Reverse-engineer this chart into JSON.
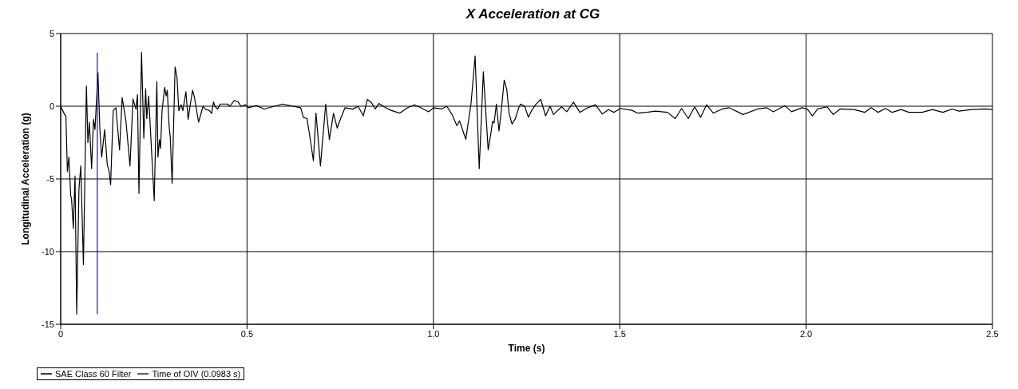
{
  "chart_data": {
    "type": "line",
    "title": "X Acceleration at CG",
    "xlabel": "Time (s)",
    "ylabel": "Longitudinal Acceleration (g)",
    "xlim": [
      0,
      2.5
    ],
    "xticks": [
      0,
      0.5,
      {
        "value": 1,
        "label": "1.0"
      },
      1.5,
      {
        "value": 2,
        "label": "2.0"
      },
      2.5
    ],
    "ylim": [
      -15,
      5
    ],
    "yticks": [
      -15,
      -10,
      -5,
      0,
      5
    ],
    "grid": true,
    "legend": "bottom left",
    "marker": "none",
    "line_style": "solid",
    "series": [
      {
        "name": "Time of OIV (0.0983 s)",
        "color": "#1c1c8c",
        "x": [
          0.0983,
          0.0983
        ],
        "values": [
          -14.3,
          3.7
        ]
      },
      {
        "name": "SAE Class 60 Filter",
        "color": "#000000",
        "x": [
          0,
          0.0105,
          0.014,
          0.018,
          0.022,
          0.027,
          0.029,
          0.034,
          0.0385,
          0.043,
          0.049,
          0.054,
          0.061,
          0.069,
          0.073,
          0.077,
          0.083,
          0.088,
          0.092,
          0.1,
          0.105,
          0.11,
          0.118,
          0.125,
          0.13,
          0.134,
          0.141,
          0.148,
          0.158,
          0.165,
          0.175,
          0.186,
          0.194,
          0.202,
          0.206,
          0.21,
          0.217,
          0.223,
          0.228,
          0.231,
          0.236,
          0.242,
          0.251,
          0.258,
          0.261,
          0.265,
          0.268,
          0.272,
          0.279,
          0.283,
          0.286,
          0.291,
          0.294,
          0.299,
          0.307,
          0.312,
          0.317,
          0.323,
          0.328,
          0.336,
          0.342,
          0.347,
          0.354,
          0.359,
          0.37,
          0.382,
          0.388,
          0.399,
          0.405,
          0.41,
          0.414,
          0.421,
          0.428,
          0.448,
          0.454,
          0.466,
          0.476,
          0.484,
          0.496,
          0.504,
          0.525,
          0.546,
          0.595,
          0.644,
          0.651,
          0.661,
          0.671,
          0.678,
          0.685,
          0.697,
          0.711,
          0.721,
          0.732,
          0.742,
          0.751,
          0.763,
          0.784,
          0.798,
          0.812,
          0.823,
          0.833,
          0.844,
          0.854,
          0.868,
          0.886,
          0.91,
          0.931,
          0.949,
          0.966,
          0.987,
          1.001,
          1.022,
          1.036,
          1.05,
          1.063,
          1.07,
          1.087,
          1.101,
          1.112,
          1.123,
          1.134,
          1.147,
          1.154,
          1.159,
          1.163,
          1.169,
          1.176,
          1.182,
          1.19,
          1.197,
          1.203,
          1.211,
          1.22,
          1.229,
          1.234,
          1.245,
          1.255,
          1.264,
          1.274,
          1.288,
          1.301,
          1.313,
          1.322,
          1.344,
          1.358,
          1.376,
          1.393,
          1.414,
          1.435,
          1.453,
          1.47,
          1.484,
          1.502,
          1.533,
          1.547,
          1.572,
          1.596,
          1.628,
          1.649,
          1.666,
          1.684,
          1.701,
          1.717,
          1.733,
          1.751,
          1.775,
          1.793,
          1.831,
          1.87,
          1.894,
          1.912,
          1.943,
          1.961,
          1.989,
          2.003,
          2.017,
          2.031,
          2.056,
          2.073,
          2.091,
          2.129,
          2.157,
          2.175,
          2.193,
          2.213,
          2.231,
          2.255,
          2.276,
          2.311,
          2.339,
          2.367,
          2.392,
          2.41,
          2.444,
          2.479,
          2.5
        ],
        "values": [
          0,
          -0.57,
          -0.66,
          -4.5,
          -3.5,
          -6.2,
          -6.3,
          -8.4,
          -4.8,
          -14.3,
          -5.7,
          -4.1,
          -10.9,
          1.4,
          -2.5,
          -1.1,
          -4.3,
          -0.9,
          -1.6,
          2.3,
          -1.5,
          -3.5,
          -1.6,
          -4,
          -4.5,
          -5.4,
          -0.3,
          -0.1,
          -3,
          0.6,
          -1,
          -4.1,
          0.5,
          -0.2,
          0.8,
          -6,
          3.7,
          -2.2,
          1.2,
          -0.85,
          0.7,
          -2.2,
          -6.5,
          1.7,
          -3.5,
          -2.3,
          -2.9,
          -0.3,
          1.3,
          0.7,
          1.1,
          -1.4,
          -2.1,
          -5.3,
          2.7,
          2,
          -0.3,
          0.1,
          -0.3,
          1,
          -0.9,
          0,
          1.1,
          0.6,
          -1.1,
          0,
          -0.2,
          -0.3,
          -0.5,
          0.3,
          0,
          -0.2,
          0.15,
          0.15,
          0,
          0.4,
          0.3,
          0,
          0.1,
          -0.1,
          0.05,
          -0.19,
          0.15,
          -0.1,
          -0.76,
          -0.85,
          -2.5,
          -3.75,
          -0.47,
          -4.1,
          0.15,
          -2.3,
          -0.47,
          -1.5,
          -0.85,
          -0.1,
          -0.2,
          0,
          -0.66,
          0.47,
          0.28,
          -0.19,
          0.19,
          -0.04,
          -0.28,
          -0.47,
          -0.1,
          0.1,
          -0.1,
          -0.38,
          -0.1,
          -0.19,
          0,
          -0.57,
          -1.33,
          -1,
          -2.27,
          0.19,
          3.45,
          -4.3,
          2.37,
          -3,
          -1.9,
          -1.04,
          -1.14,
          0.15,
          -1.7,
          -0.34,
          1.8,
          1.14,
          -0.47,
          -1.23,
          -0.85,
          -0.1,
          0.15,
          0,
          -0.76,
          -0.28,
          0.1,
          0.47,
          -0.66,
          0,
          -0.57,
          -0.04,
          -0.38,
          0.28,
          -0.42,
          -0.1,
          0.1,
          -0.53,
          -0.23,
          -0.42,
          -0.15,
          -0.28,
          -0.47,
          -0.42,
          -0.34,
          -0.42,
          -0.85,
          -0.15,
          -0.85,
          -0.04,
          -0.76,
          0.1,
          -0.47,
          -0.19,
          -0.1,
          -0.57,
          -0.19,
          -0.1,
          -0.38,
          0.04,
          -0.38,
          -0.1,
          -0.19,
          -0.66,
          -0.19,
          -0.04,
          -0.57,
          -0.19,
          -0.23,
          -0.42,
          -0.1,
          -0.42,
          -0.15,
          -0.42,
          -0.23,
          -0.42,
          -0.42,
          -0.23,
          -0.42,
          -0.19,
          -0.34,
          -0.23,
          -0.19,
          -0.23
        ]
      }
    ]
  }
}
